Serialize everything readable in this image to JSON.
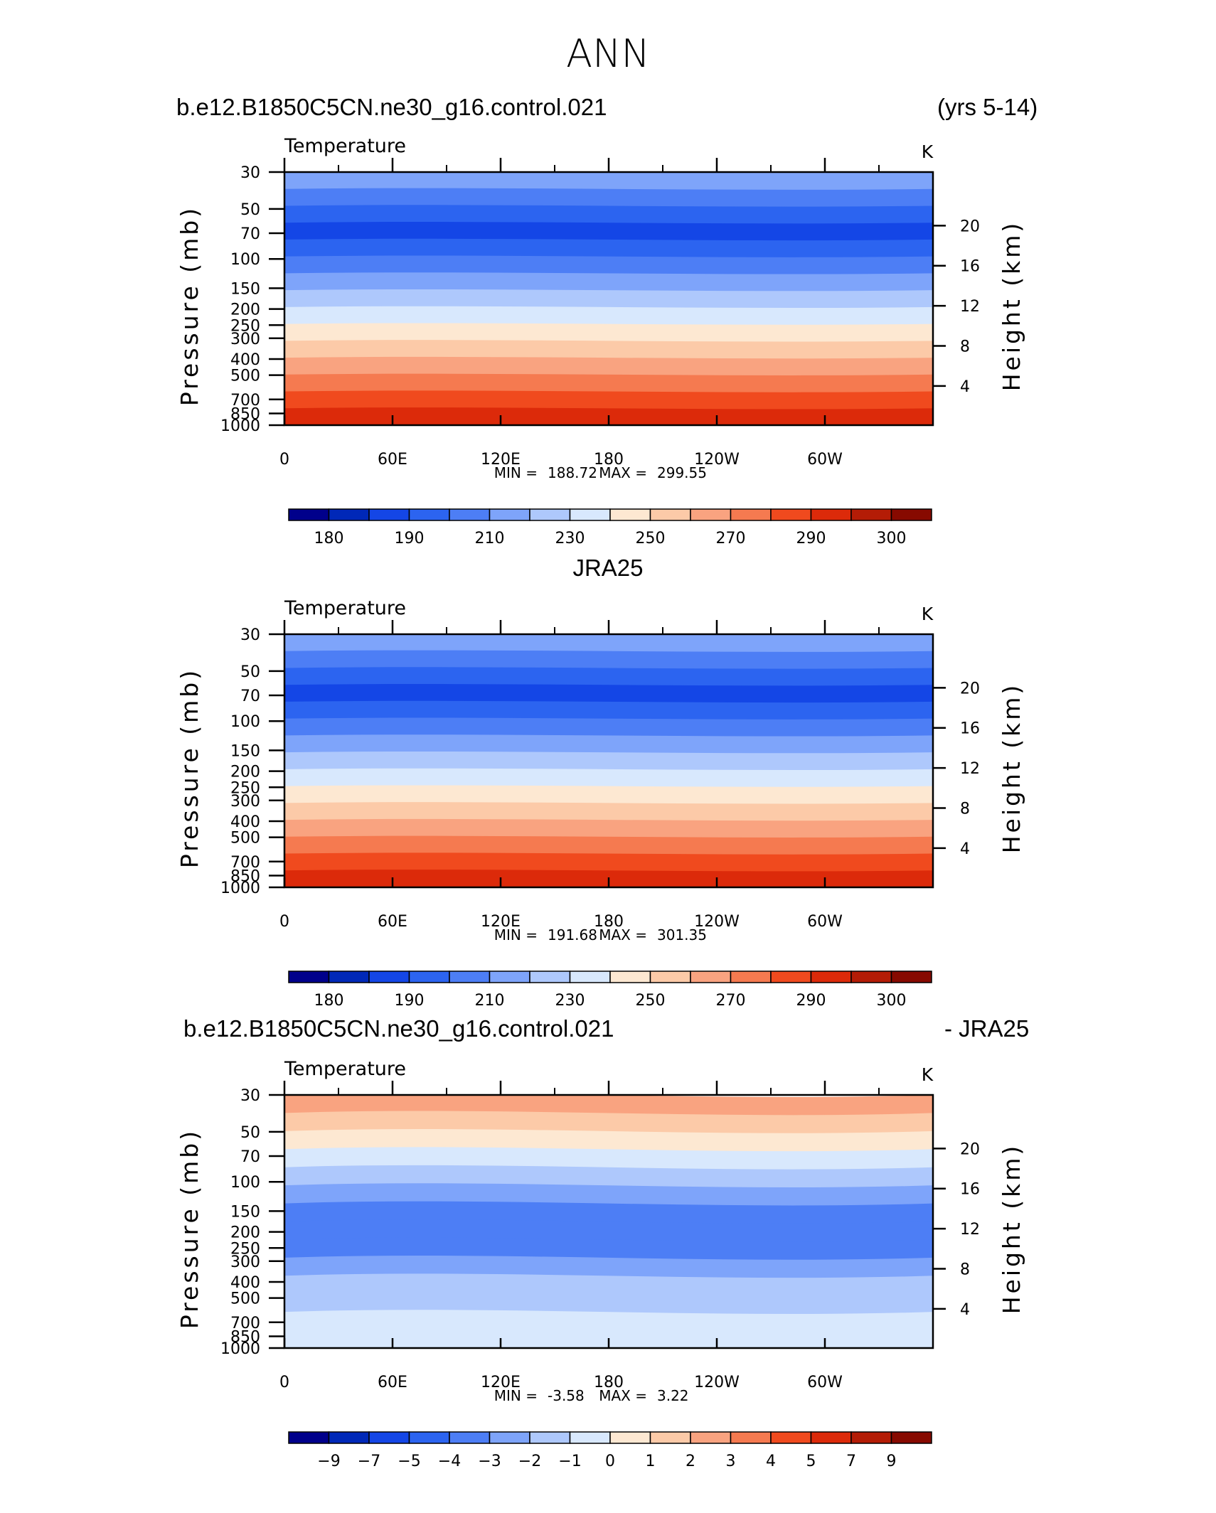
{
  "figure": {
    "title": "ANN",
    "panel1_left": "b.e12.B1850C5CN.ne30_g16.control.021",
    "panel1_right": "(yrs 5-14)",
    "panel2_center": "JRA25",
    "panel3_left": "b.e12.B1850C5CN.ne30_g16.control.021",
    "panel3_right": "- JRA25"
  },
  "chart_data": [
    {
      "type": "heatmap",
      "title": "Temperature",
      "units": "K",
      "ylabel": "Pressure (mb)",
      "ylabel_right": "Height (km)",
      "x_ticklabels": [
        "0",
        "60E",
        "120E",
        "180",
        "120W",
        "60W"
      ],
      "y_ticklabels": [
        "30",
        "50",
        "70",
        "100",
        "150",
        "200",
        "250",
        "300",
        "400",
        "500",
        "700",
        "850",
        "1000"
      ],
      "y_right_ticklabels": [
        "20",
        "16",
        "12",
        "8",
        "4"
      ],
      "min_label": "MIN =",
      "min_value": "188.72",
      "max_label": "MAX =",
      "max_value": "299.55",
      "levels": [
        180,
        185,
        190,
        200,
        210,
        220,
        230,
        240,
        250,
        260,
        270,
        280,
        290,
        295,
        300
      ],
      "colorbar_labels": [
        "180",
        "190",
        "210",
        "230",
        "250",
        "270",
        "290",
        "300"
      ],
      "colors": [
        "#00008b",
        "#0028b8",
        "#1446e6",
        "#2c64f0",
        "#4d7ef5",
        "#7ea4fa",
        "#aec8fc",
        "#d8e8fd",
        "#fde8d2",
        "#fccaa8",
        "#f9a380",
        "#f57a50",
        "#f04a1e",
        "#dc2a0a",
        "#b41c06",
        "#870a00"
      ],
      "band_indices": [
        5,
        4,
        3,
        2,
        3,
        4,
        5,
        6,
        7,
        8,
        9,
        10,
        11,
        12,
        13
      ]
    },
    {
      "type": "heatmap",
      "title": "Temperature",
      "units": "K",
      "ylabel": "Pressure (mb)",
      "ylabel_right": "Height (km)",
      "x_ticklabels": [
        "0",
        "60E",
        "120E",
        "180",
        "120W",
        "60W"
      ],
      "y_ticklabels": [
        "30",
        "50",
        "70",
        "100",
        "150",
        "200",
        "250",
        "300",
        "400",
        "500",
        "700",
        "850",
        "1000"
      ],
      "y_right_ticklabels": [
        "20",
        "16",
        "12",
        "8",
        "4"
      ],
      "min_label": "MIN =",
      "min_value": "191.68",
      "max_label": "MAX =",
      "max_value": "301.35",
      "levels": [
        180,
        185,
        190,
        200,
        210,
        220,
        230,
        240,
        250,
        260,
        270,
        280,
        290,
        295,
        300
      ],
      "colorbar_labels": [
        "180",
        "190",
        "210",
        "230",
        "250",
        "270",
        "290",
        "300"
      ],
      "colors": [
        "#00008b",
        "#0028b8",
        "#1446e6",
        "#2c64f0",
        "#4d7ef5",
        "#7ea4fa",
        "#aec8fc",
        "#d8e8fd",
        "#fde8d2",
        "#fccaa8",
        "#f9a380",
        "#f57a50",
        "#f04a1e",
        "#dc2a0a",
        "#b41c06",
        "#870a00"
      ],
      "band_indices": [
        5,
        4,
        3,
        2,
        3,
        4,
        5,
        6,
        7,
        8,
        9,
        10,
        11,
        12,
        13
      ]
    },
    {
      "type": "heatmap",
      "title": "Temperature",
      "units": "K",
      "ylabel": "Pressure (mb)",
      "ylabel_right": "Height (km)",
      "x_ticklabels": [
        "0",
        "60E",
        "120E",
        "180",
        "120W",
        "60W"
      ],
      "y_ticklabels": [
        "30",
        "50",
        "70",
        "100",
        "150",
        "200",
        "250",
        "300",
        "400",
        "500",
        "700",
        "850",
        "1000"
      ],
      "y_right_ticklabels": [
        "20",
        "16",
        "12",
        "8",
        "4"
      ],
      "min_label": "MIN =",
      "min_value": "-3.58",
      "max_label": "MAX =",
      "max_value": "3.22",
      "levels": [
        -9,
        -7,
        -5,
        -4,
        -3,
        -2,
        -1,
        0,
        1,
        2,
        3,
        4,
        5,
        7,
        9
      ],
      "colorbar_labels": [
        "-9",
        "-7",
        "-5",
        "-4",
        "-3",
        "-2",
        "-1",
        "0",
        "1",
        "2",
        "3",
        "4",
        "5",
        "7",
        "9"
      ],
      "colors": [
        "#00008b",
        "#0028b8",
        "#1446e6",
        "#2c64f0",
        "#4d7ef5",
        "#7ea4fa",
        "#aec8fc",
        "#d8e8fd",
        "#fde8d2",
        "#fccaa8",
        "#f9a380",
        "#f57a50",
        "#f04a1e",
        "#dc2a0a",
        "#b41c06",
        "#870a00"
      ],
      "band_indices": [
        10,
        9,
        8,
        7,
        6,
        5,
        4,
        4,
        4,
        5,
        6,
        6,
        7,
        7
      ]
    }
  ]
}
